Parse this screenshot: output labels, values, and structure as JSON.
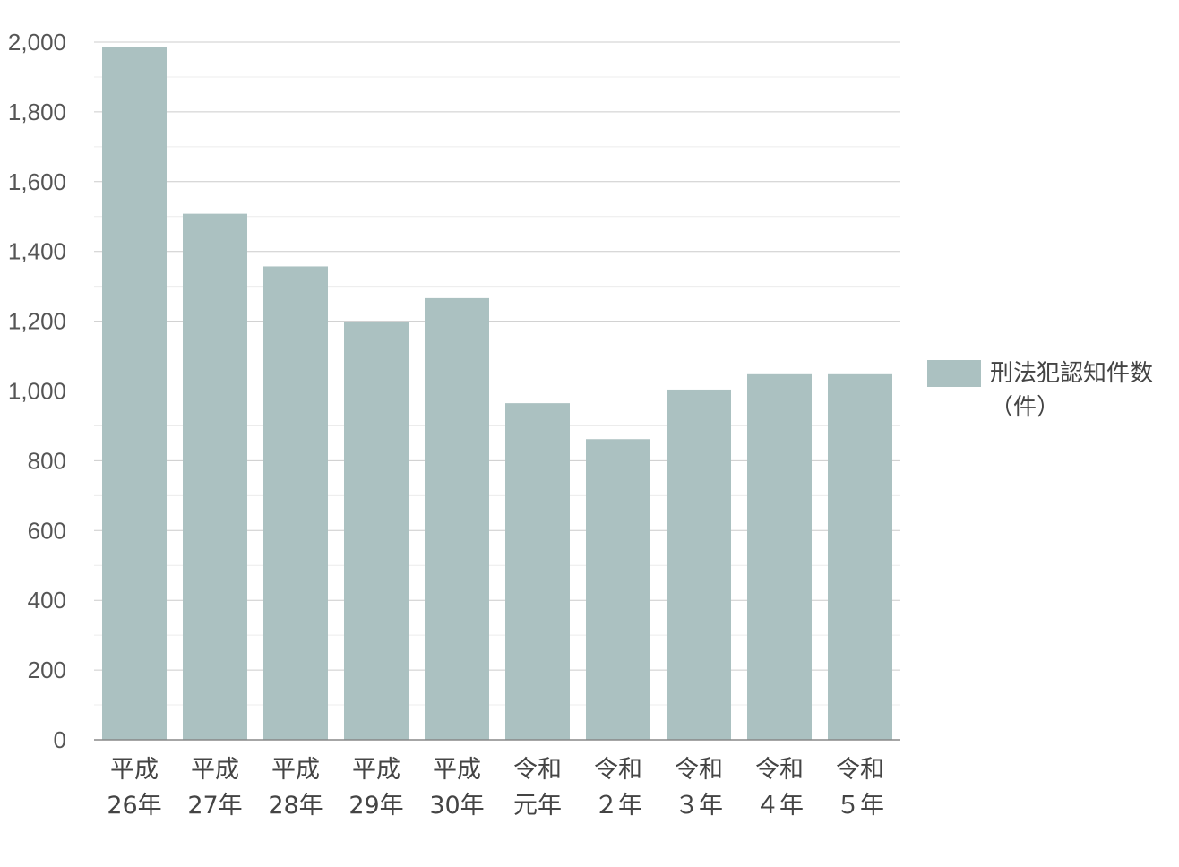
{
  "chart_data": {
    "type": "bar",
    "categories": [
      [
        "平成",
        "26年"
      ],
      [
        "平成",
        "27年"
      ],
      [
        "平成",
        "28年"
      ],
      [
        "平成",
        "29年"
      ],
      [
        "平成",
        "30年"
      ],
      [
        "令和",
        "元年"
      ],
      [
        "令和",
        "２年"
      ],
      [
        "令和",
        "３年"
      ],
      [
        "令和",
        "４年"
      ],
      [
        "令和",
        "５年"
      ]
    ],
    "series": [
      {
        "name": [
          "刑法犯認知件数",
          "（件）"
        ],
        "values": [
          1985,
          1508,
          1357,
          1199,
          1266,
          965,
          862,
          1004,
          1048,
          1048
        ],
        "color": "#abc1c1"
      }
    ],
    "yticks": [
      "0",
      "200",
      "400",
      "600",
      "800",
      "1,000",
      "1,200",
      "1,400",
      "1,600",
      "1,800",
      "2,000"
    ],
    "ylim": [
      0,
      2000
    ],
    "grid": true,
    "legend_position": "right",
    "title": "",
    "xlabel": "",
    "ylabel": ""
  }
}
